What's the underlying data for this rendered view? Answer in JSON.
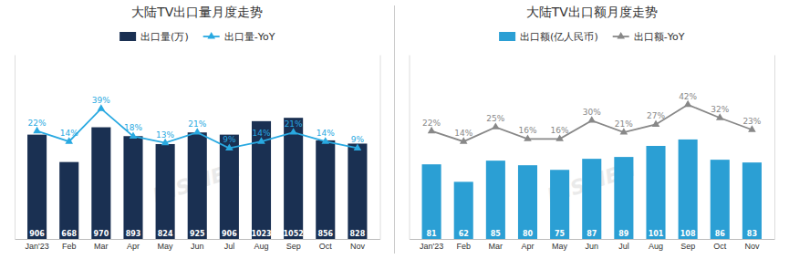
{
  "chart_data": [
    {
      "type": "bar",
      "title": "大陆TV出口量月度走势",
      "categories": [
        "Jan'23",
        "Feb",
        "Mar",
        "Apr",
        "May",
        "Jun",
        "Jul",
        "Aug",
        "Sep",
        "Oct",
        "Nov"
      ],
      "series": [
        {
          "name": "出口量(万)",
          "type": "bar",
          "color": "#1a3052",
          "values": [
            906,
            668,
            970,
            893,
            824,
            925,
            906,
            1023,
            1052,
            856,
            828
          ]
        },
        {
          "name": "出口量-YoY",
          "type": "line",
          "axis": "y2",
          "color": "#29a9e1",
          "marker": "triangle",
          "values": [
            22,
            14,
            39,
            18,
            13,
            21,
            9,
            14,
            21,
            14,
            9
          ],
          "value_labels": [
            "22%",
            "14%",
            "39%",
            "18%",
            "13%",
            "21%",
            "9%",
            "14%",
            "21%",
            "14%",
            "9%"
          ]
        }
      ],
      "ylim": [
        0,
        1600
      ],
      "yticks": [],
      "y2lim": [
        -60,
        80
      ],
      "y2ticks": [],
      "tick_labels": "x",
      "data_labels": true,
      "legend": "top",
      "annotations": [
        "DISCIEN"
      ]
    },
    {
      "type": "bar",
      "title": "大陆TV出口额月度走势",
      "categories": [
        "Jan'23",
        "Feb",
        "Mar",
        "Apr",
        "May",
        "Jun",
        "Jul",
        "Aug",
        "Sep",
        "Oct",
        "Nov"
      ],
      "series": [
        {
          "name": "出口额(亿人民币)",
          "type": "bar",
          "color": "#2b9fd4",
          "values": [
            81,
            62,
            85,
            80,
            75,
            87,
            89,
            101,
            108,
            86,
            83
          ]
        },
        {
          "name": "出口额-YoY",
          "type": "line",
          "axis": "y2",
          "color": "#888888",
          "marker": "triangle",
          "values": [
            22,
            14,
            25,
            16,
            16,
            30,
            21,
            27,
            42,
            32,
            23
          ],
          "value_labels": [
            "22%",
            "14%",
            "25%",
            "16%",
            "16%",
            "30%",
            "21%",
            "27%",
            "42%",
            "32%",
            "23%"
          ]
        }
      ],
      "ylim": [
        0,
        200
      ],
      "yticks": [],
      "y2lim": [
        -60,
        80
      ],
      "y2ticks": [],
      "tick_labels": "x",
      "data_labels": true,
      "legend": "top",
      "annotations": [
        "DISCIEN"
      ]
    }
  ]
}
